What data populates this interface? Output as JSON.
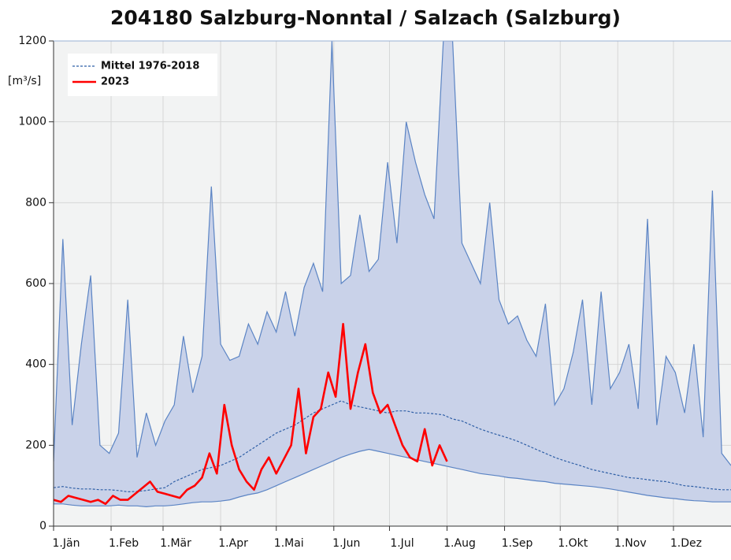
{
  "chart_data": {
    "type": "line",
    "title": "204180 Salzburg-Nonntal / Salzach (Salzburg)",
    "y_unit": "[m³/s]",
    "xlim": [
      0,
      365
    ],
    "ylim": [
      0,
      1200
    ],
    "yticks": [
      0,
      200,
      400,
      600,
      800,
      1000,
      1200
    ],
    "xticks": [
      {
        "value": 0,
        "label": "1.Jän"
      },
      {
        "value": 31,
        "label": "1.Feb"
      },
      {
        "value": 59,
        "label": "1.Mär"
      },
      {
        "value": 90,
        "label": "1.Apr"
      },
      {
        "value": 120,
        "label": "1.Mai"
      },
      {
        "value": 151,
        "label": "1.Jun"
      },
      {
        "value": 181,
        "label": "1.Jul"
      },
      {
        "value": 212,
        "label": "1.Aug"
      },
      {
        "value": 243,
        "label": "1.Sep"
      },
      {
        "value": 273,
        "label": "1.Okt"
      },
      {
        "value": 304,
        "label": "1.Nov"
      },
      {
        "value": 334,
        "label": "1.Dez"
      }
    ],
    "grid": true,
    "legend": "upper left",
    "band": {
      "color": "#c9d2e9",
      "line_color": "#5b84c4",
      "x": [
        0,
        5,
        10,
        15,
        20,
        25,
        30,
        35,
        40,
        45,
        50,
        55,
        60,
        65,
        70,
        75,
        80,
        85,
        90,
        95,
        100,
        105,
        110,
        115,
        120,
        125,
        130,
        135,
        140,
        145,
        150,
        155,
        160,
        165,
        170,
        175,
        180,
        185,
        190,
        195,
        200,
        205,
        210,
        215,
        220,
        225,
        230,
        235,
        240,
        245,
        250,
        255,
        260,
        265,
        270,
        275,
        280,
        285,
        290,
        295,
        300,
        305,
        310,
        315,
        320,
        325,
        330,
        335,
        340,
        345,
        350,
        355,
        360,
        365
      ],
      "upper": [
        160,
        710,
        250,
        450,
        620,
        200,
        180,
        230,
        560,
        170,
        280,
        200,
        260,
        300,
        470,
        330,
        420,
        840,
        450,
        410,
        420,
        500,
        450,
        530,
        480,
        580,
        470,
        590,
        650,
        580,
        1200,
        600,
        620,
        770,
        630,
        660,
        900,
        700,
        1000,
        900,
        820,
        760,
        1200,
        1200,
        700,
        650,
        600,
        800,
        560,
        500,
        520,
        460,
        420,
        550,
        300,
        340,
        430,
        560,
        300,
        580,
        340,
        380,
        450,
        290,
        760,
        250,
        420,
        380,
        280,
        450,
        220,
        830,
        180,
        150
      ],
      "lower": [
        55,
        55,
        52,
        50,
        50,
        50,
        50,
        52,
        50,
        50,
        48,
        50,
        50,
        52,
        55,
        58,
        60,
        60,
        62,
        65,
        72,
        78,
        82,
        90,
        100,
        110,
        120,
        130,
        140,
        150,
        160,
        170,
        178,
        185,
        190,
        185,
        180,
        175,
        170,
        165,
        160,
        155,
        150,
        145,
        140,
        135,
        130,
        127,
        124,
        120,
        118,
        115,
        112,
        110,
        106,
        104,
        102,
        100,
        98,
        95,
        92,
        88,
        84,
        80,
        76,
        73,
        70,
        68,
        65,
        63,
        62,
        60,
        60,
        60
      ]
    },
    "series": [
      {
        "name": "Mittel 1976-2018",
        "color": "#2f5fa6",
        "dashed": true,
        "x": [
          0,
          5,
          10,
          15,
          20,
          25,
          30,
          35,
          40,
          45,
          50,
          55,
          60,
          65,
          70,
          75,
          80,
          85,
          90,
          95,
          100,
          105,
          110,
          115,
          120,
          125,
          130,
          135,
          140,
          145,
          150,
          155,
          160,
          165,
          170,
          175,
          180,
          185,
          190,
          195,
          200,
          205,
          210,
          215,
          220,
          225,
          230,
          235,
          240,
          245,
          250,
          255,
          260,
          265,
          270,
          275,
          280,
          285,
          290,
          295,
          300,
          305,
          310,
          315,
          320,
          325,
          330,
          335,
          340,
          345,
          350,
          355,
          360,
          365
        ],
        "values": [
          95,
          98,
          94,
          92,
          92,
          90,
          90,
          88,
          85,
          86,
          88,
          92,
          95,
          110,
          120,
          130,
          140,
          145,
          150,
          160,
          170,
          185,
          200,
          215,
          230,
          240,
          250,
          265,
          280,
          290,
          300,
          310,
          300,
          295,
          290,
          285,
          280,
          285,
          285,
          280,
          280,
          278,
          275,
          265,
          260,
          250,
          240,
          232,
          225,
          218,
          210,
          200,
          190,
          180,
          170,
          162,
          155,
          148,
          140,
          135,
          130,
          125,
          120,
          118,
          115,
          112,
          110,
          105,
          100,
          98,
          95,
          92,
          90,
          90
        ]
      },
      {
        "name": "2023",
        "color": "#ff0000",
        "dashed": false,
        "x": [
          0,
          4,
          8,
          12,
          16,
          20,
          24,
          28,
          32,
          36,
          40,
          44,
          48,
          52,
          56,
          60,
          64,
          68,
          72,
          76,
          80,
          84,
          88,
          92,
          96,
          100,
          104,
          108,
          112,
          116,
          120,
          124,
          128,
          132,
          136,
          140,
          144,
          148,
          152,
          156,
          160,
          164,
          168,
          172,
          176,
          180,
          184,
          188,
          192,
          196,
          200,
          204,
          208,
          212
        ],
        "values": [
          65,
          60,
          75,
          70,
          65,
          60,
          65,
          55,
          75,
          65,
          65,
          80,
          95,
          110,
          85,
          80,
          75,
          70,
          90,
          100,
          120,
          180,
          130,
          300,
          200,
          140,
          110,
          90,
          140,
          170,
          130,
          165,
          200,
          340,
          180,
          270,
          290,
          380,
          320,
          500,
          290,
          380,
          450,
          330,
          280,
          300,
          250,
          200,
          170,
          160,
          240,
          150,
          200,
          160
        ]
      }
    ]
  }
}
